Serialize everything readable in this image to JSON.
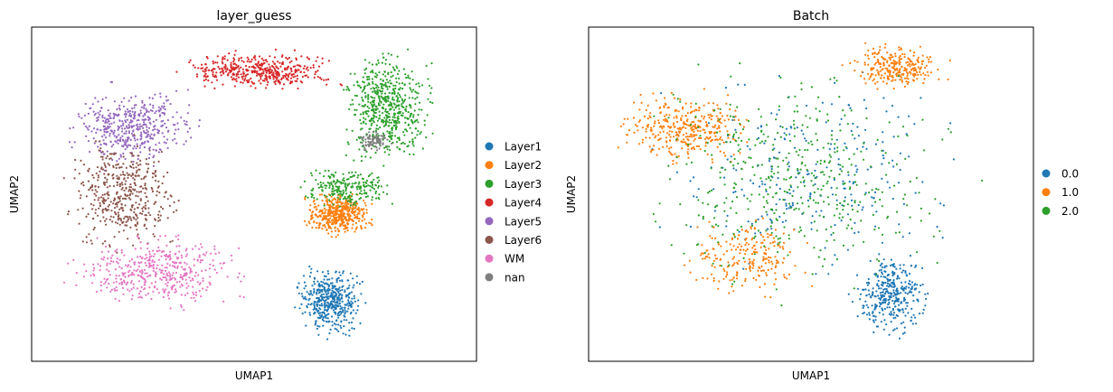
{
  "chart_data": [
    {
      "type": "scatter",
      "title": "layer_guess",
      "xlabel": "UMAP1",
      "ylabel": "UMAP2",
      "xlim": [
        0,
        100
      ],
      "ylim": [
        0,
        100
      ],
      "grid": false,
      "legend_position": "right",
      "series": [
        {
          "name": "Layer1",
          "color": "#1f77b4",
          "regions": [
            {
              "x": [
                58,
                76
              ],
              "y": [
                6,
                30
              ],
              "weight": 1.0
            }
          ]
        },
        {
          "name": "Layer2",
          "color": "#ff7f0e",
          "regions": [
            {
              "x": [
                60,
                78
              ],
              "y": [
                36,
                52
              ],
              "weight": 1.0
            }
          ]
        },
        {
          "name": "Layer3",
          "color": "#2ca02c",
          "regions": [
            {
              "x": [
                68,
                92
              ],
              "y": [
                56,
                96
              ],
              "weight": 1.3
            },
            {
              "x": [
                58,
                84
              ],
              "y": [
                44,
                60
              ],
              "weight": 0.5
            }
          ]
        },
        {
          "name": "Layer4",
          "color": "#d62728",
          "regions": [
            {
              "x": [
                30,
                72
              ],
              "y": [
                80,
                94
              ],
              "weight": 1.0
            }
          ]
        },
        {
          "name": "Layer5",
          "color": "#9467bd",
          "regions": [
            {
              "x": [
                6,
                40
              ],
              "y": [
                56,
                84
              ],
              "weight": 1.0
            }
          ]
        },
        {
          "name": "Layer6",
          "color": "#8c564b",
          "regions": [
            {
              "x": [
                6,
                36
              ],
              "y": [
                30,
                70
              ],
              "weight": 1.0
            }
          ]
        },
        {
          "name": "WM",
          "color": "#e377c2",
          "regions": [
            {
              "x": [
                4,
                52
              ],
              "y": [
                14,
                40
              ],
              "weight": 1.0
            }
          ]
        },
        {
          "name": "nan",
          "color": "#7f7f7f",
          "regions": [
            {
              "x": [
                72,
                82
              ],
              "y": [
                62,
                70
              ],
              "weight": 0.2
            }
          ]
        }
      ]
    },
    {
      "type": "scatter",
      "title": "Batch",
      "xlabel": "UMAP1",
      "ylabel": "UMAP2",
      "xlim": [
        0,
        100
      ],
      "ylim": [
        0,
        100
      ],
      "grid": false,
      "legend_position": "right",
      "series": [
        {
          "name": "0.0",
          "color": "#1f77b4",
          "regions": [
            {
              "x": [
                58,
                78
              ],
              "y": [
                6,
                34
              ],
              "weight": 0.8
            },
            {
              "x": [
                10,
                92
              ],
              "y": [
                18,
                94
              ],
              "weight": 0.6
            }
          ]
        },
        {
          "name": "1.0",
          "color": "#ff7f0e",
          "regions": [
            {
              "x": [
                4,
                40
              ],
              "y": [
                56,
                84
              ],
              "weight": 0.8
            },
            {
              "x": [
                56,
                82
              ],
              "y": [
                80,
                96
              ],
              "weight": 0.6
            },
            {
              "x": [
                20,
                52
              ],
              "y": [
                16,
                46
              ],
              "weight": 0.5
            }
          ]
        },
        {
          "name": "2.0",
          "color": "#2ca02c",
          "regions": [
            {
              "x": [
                4,
                92
              ],
              "y": [
                14,
                94
              ],
              "weight": 1.0
            }
          ]
        }
      ]
    }
  ]
}
